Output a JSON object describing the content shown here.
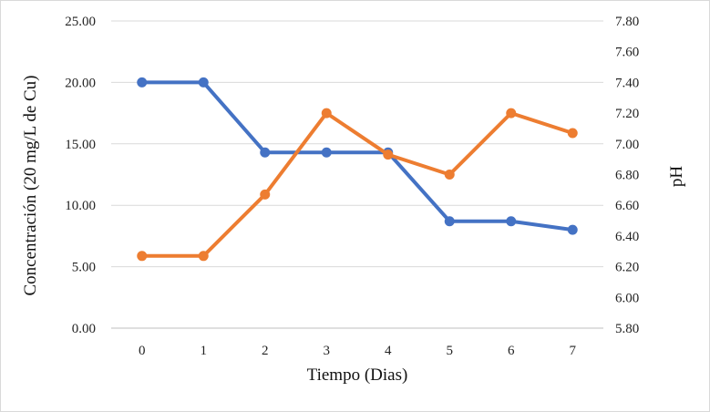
{
  "chart_data": {
    "type": "line",
    "categories": [
      "0",
      "1",
      "2",
      "3",
      "4",
      "5",
      "6",
      "7"
    ],
    "x": [
      0,
      1,
      2,
      3,
      4,
      5,
      6,
      7
    ],
    "xlabel": "Tiempo (Dias)",
    "ylabel": "Concentración  (20 mg/L de Cu)",
    "y2label": "pH",
    "ylim": [
      0,
      25
    ],
    "y2lim": [
      5.8,
      7.8
    ],
    "yticks": [
      "0.00",
      "5.00",
      "10.00",
      "15.00",
      "20.00",
      "25.00"
    ],
    "y2ticks": [
      "5.80",
      "6.00",
      "6.20",
      "6.40",
      "6.60",
      "6.80",
      "7.00",
      "7.20",
      "7.40",
      "7.60",
      "7.80"
    ],
    "grid": true,
    "legend": "none",
    "series": [
      {
        "axis": "left",
        "color": "#4472c4",
        "values": [
          20.0,
          20.0,
          14.3,
          14.3,
          14.3,
          8.7,
          8.7,
          8.0
        ]
      },
      {
        "axis": "right",
        "color": "#ed7d31",
        "values": [
          6.27,
          6.27,
          6.67,
          7.2,
          6.93,
          6.8,
          7.2,
          7.07
        ]
      }
    ]
  }
}
